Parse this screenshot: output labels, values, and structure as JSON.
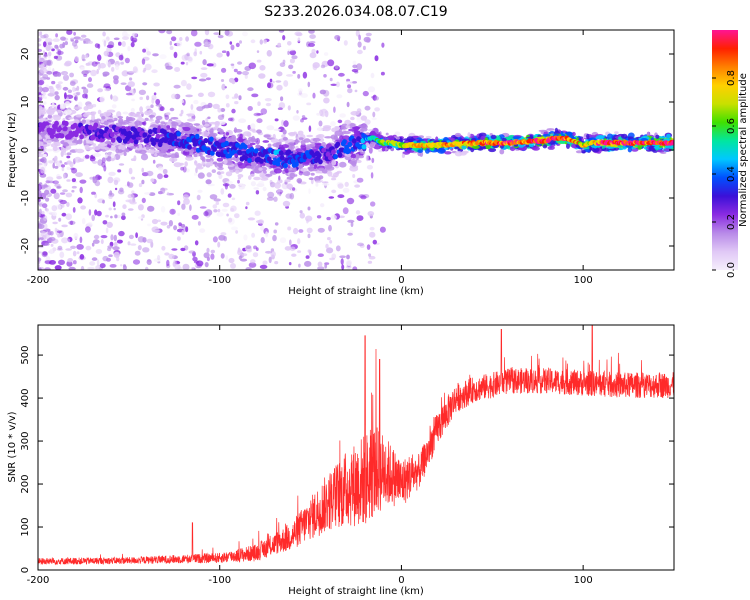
{
  "title": "S233.2026.034.08.07.C19",
  "chart_data": [
    {
      "type": "heatmap",
      "title": "S233.2026.034.08.07.C19",
      "xlabel": "Height of straight line (km)",
      "ylabel": "Frequency (Hz)",
      "xlim": [
        -200,
        150
      ],
      "ylim": [
        -25,
        25
      ],
      "xticks": [
        -200,
        -100,
        0,
        100
      ],
      "yticks": [
        -20,
        -10,
        0,
        10,
        20
      ],
      "colorbar": {
        "label": "Normalized spectral amplitude",
        "range": [
          0,
          1
        ],
        "ticks": [
          "0.0",
          "0.2",
          "0.4",
          "0.6",
          "0.8"
        ],
        "colors": [
          "#f5eefc",
          "#e0c8f6",
          "#b88ae8",
          "#8a2be2",
          "#3b10d8",
          "#0050ff",
          "#00c8ff",
          "#00e6a0",
          "#40e000",
          "#c8e000",
          "#ffd000",
          "#ff8000",
          "#ff2000",
          "#ff1493"
        ]
      },
      "ridge": {
        "x": [
          -200,
          -180,
          -160,
          -140,
          -120,
          -100,
          -80,
          -60,
          -40,
          -30,
          -20,
          -15,
          -10,
          -5,
          0,
          10,
          20,
          40,
          60,
          80,
          85,
          90,
          95,
          100,
          105,
          110,
          120,
          150
        ],
        "y": [
          4.5,
          4,
          3.5,
          3,
          2,
          0.5,
          -1,
          -2,
          -1,
          1,
          2,
          2.5,
          1.5,
          1.5,
          1,
          1,
          1,
          1.5,
          1.5,
          2,
          2.5,
          2.5,
          2,
          1,
          1.5,
          1.5,
          1.5,
          1.5
        ],
        "amplitude": [
          0.25,
          0.25,
          0.3,
          0.3,
          0.35,
          0.35,
          0.35,
          0.4,
          0.3,
          0.35,
          0.4,
          0.5,
          0.6,
          0.6,
          0.65,
          0.75,
          0.75,
          0.8,
          0.85,
          0.9,
          0.9,
          0.9,
          0.8,
          0.7,
          0.75,
          0.85,
          0.9,
          0.9
        ]
      }
    },
    {
      "type": "line",
      "xlabel": "Height of straight line (km)",
      "ylabel": "SNR (10 * v/v)",
      "xlim": [
        -200,
        150
      ],
      "ylim": [
        0,
        570
      ],
      "xticks": [
        -200,
        -100,
        0,
        100
      ],
      "yticks": [
        0,
        100,
        200,
        300,
        400,
        500
      ],
      "color": "#ff2a2a",
      "series": [
        {
          "name": "SNR",
          "trend_x": [
            -200,
            -150,
            -100,
            -80,
            -70,
            -60,
            -50,
            -40,
            -30,
            -25,
            -20,
            -15,
            -10,
            -5,
            0,
            5,
            10,
            20,
            30,
            40,
            50,
            60,
            80,
            100,
            120,
            150
          ],
          "trend_y": [
            20,
            22,
            28,
            40,
            60,
            80,
            120,
            160,
            190,
            200,
            210,
            230,
            230,
            220,
            200,
            220,
            230,
            330,
            400,
            420,
            430,
            440,
            440,
            435,
            430,
            430
          ],
          "noise_amp": [
            8,
            8,
            12,
            20,
            25,
            35,
            50,
            70,
            90,
            100,
            110,
            110,
            90,
            70,
            60,
            50,
            40,
            40,
            35,
            30,
            30,
            30,
            30,
            30,
            30,
            30
          ],
          "spikes_x": [
            -115,
            -20,
            -12,
            55,
            105
          ],
          "spikes_y": [
            110,
            545,
            490,
            560,
            570
          ]
        }
      ]
    }
  ]
}
